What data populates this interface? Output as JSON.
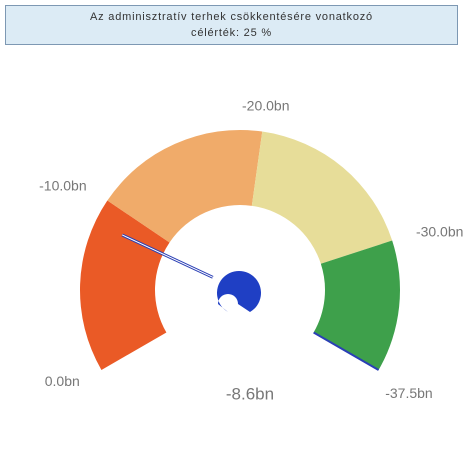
{
  "chart_data": {
    "type": "gauge",
    "title": "Az adminisztratív terhek csökkentésére vonatkozó célérték: 25 %",
    "value": -8.6,
    "value_label": "-8.6bn",
    "target": -37.5,
    "ylim": [
      0,
      -37.5
    ],
    "yticks": [
      {
        "value": 0,
        "label": "0.0bn"
      },
      {
        "value": -10,
        "label": "-10.0bn"
      },
      {
        "value": -20,
        "label": "-20.0bn"
      },
      {
        "value": -30,
        "label": "-30.0bn"
      },
      {
        "value": -37.5,
        "label": "-37.5bn"
      }
    ],
    "bands": [
      {
        "from": 0,
        "to": -10,
        "color": "#ea5a26"
      },
      {
        "from": -10,
        "to": -20,
        "color": "#f0ab6a"
      },
      {
        "from": -20,
        "to": -30,
        "color": "#e7dd99"
      },
      {
        "from": -30,
        "to": -37.5,
        "color": "#3ea04b"
      }
    ],
    "needle_color": "#2a3fb5"
  }
}
